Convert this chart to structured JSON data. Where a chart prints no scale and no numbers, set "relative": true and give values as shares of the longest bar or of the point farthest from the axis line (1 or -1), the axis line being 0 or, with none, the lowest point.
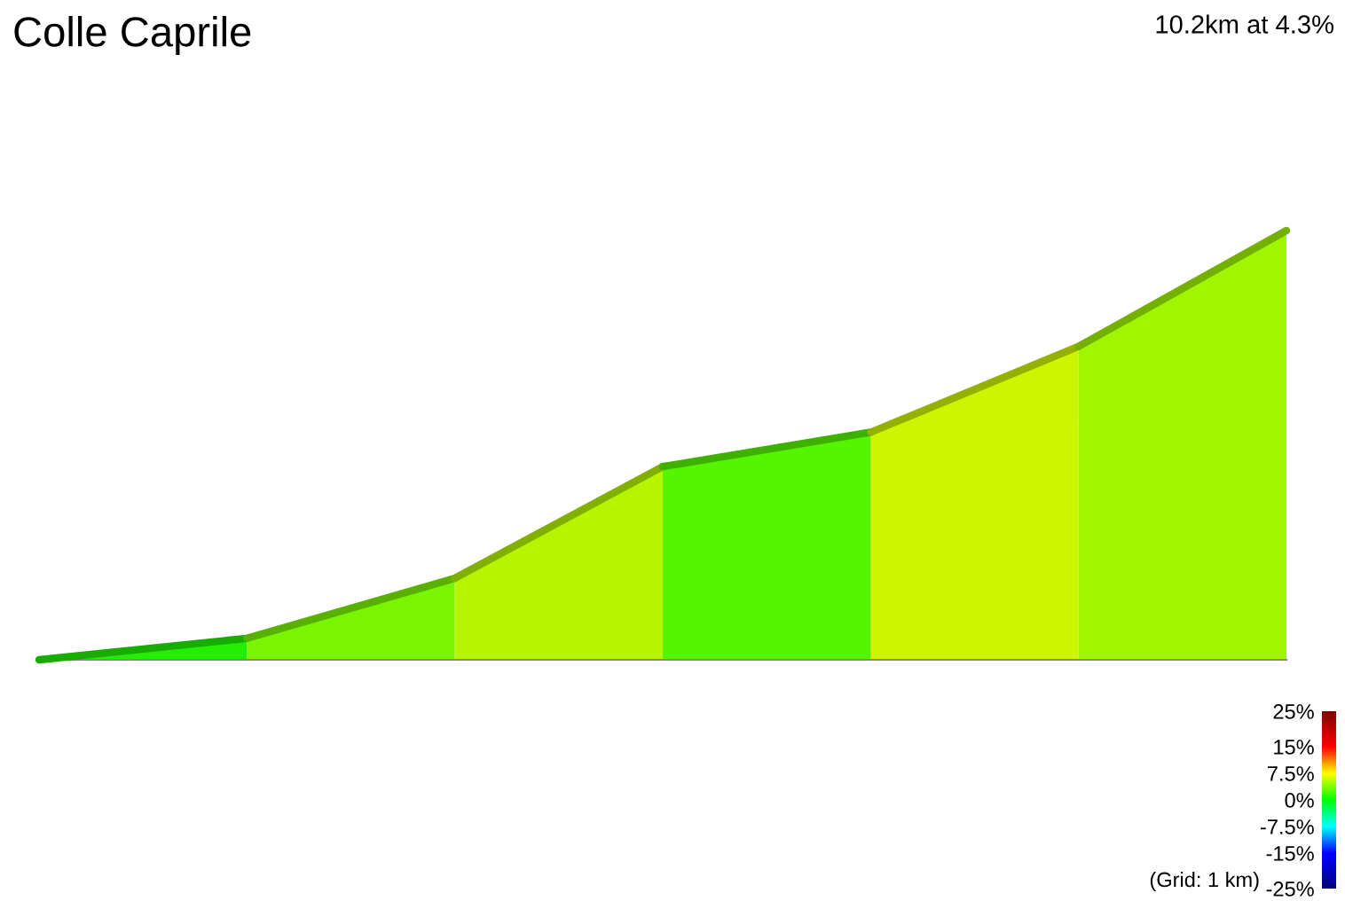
{
  "chart_data": {
    "type": "area",
    "title": "Colle Caprile",
    "subtitle": "10.2km at 4.3%",
    "relative": true,
    "categories": [
      null,
      null,
      null,
      null,
      null,
      null,
      null
    ],
    "series": [
      {
        "color": "#22ee00",
        "values": [
          0,
          0.05,
          null,
          null,
          null,
          null,
          null
        ]
      },
      {
        "color": "#7af500",
        "values": [
          null,
          0.05,
          0.19,
          null,
          null,
          null,
          null
        ]
      },
      {
        "color": "#b5f500",
        "values": [
          null,
          null,
          0.19,
          0.45,
          null,
          null,
          null
        ]
      },
      {
        "color": "#55f500",
        "values": [
          null,
          null,
          null,
          0.45,
          0.53,
          null,
          null
        ]
      },
      {
        "color": "#cdf500",
        "values": [
          null,
          null,
          null,
          null,
          0.53,
          0.73,
          null
        ]
      },
      {
        "color": "#a0f500",
        "values": [
          null,
          null,
          null,
          null,
          null,
          0.73,
          1.0
        ]
      }
    ],
    "clim": [
      -25,
      25
    ],
    "cticks": [
      {
        "value": 25,
        "label": "25%"
      },
      {
        "value": 15,
        "label": "15%"
      },
      {
        "value": 7.5,
        "label": "7.5%"
      },
      {
        "value": 0,
        "label": "0%"
      },
      {
        "value": -7.5,
        "label": "-7.5%"
      },
      {
        "value": -15,
        "label": "-15%"
      },
      {
        "value": -25,
        "label": "-25%"
      }
    ],
    "annotations": [
      "(Grid: 1 km)"
    ]
  }
}
